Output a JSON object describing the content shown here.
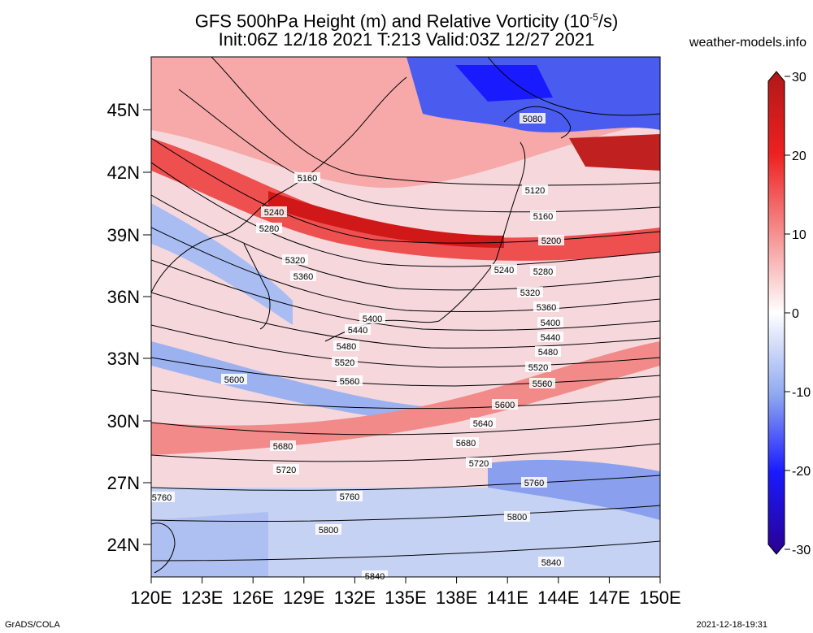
{
  "title": {
    "line1": "GFS 500hPa Height (m) and Relative Vorticity (10",
    "exp": "-5",
    "line1_tail": "/s)",
    "line2": "Init:06Z 12/18 2021 T:213 Valid:03Z 12/27 2021"
  },
  "site": "weather-models.info",
  "footer": {
    "left": "GrADS/COLA",
    "right": "2021-12-18-19:31"
  },
  "lat_labels": [
    "45N",
    "42N",
    "39N",
    "36N",
    "33N",
    "30N",
    "27N",
    "24N"
  ],
  "lon_labels": [
    "120E",
    "123E",
    "126E",
    "129E",
    "132E",
    "135E",
    "138E",
    "141E",
    "144E",
    "147E",
    "150E"
  ],
  "colorbar": {
    "ticks": [
      "30",
      "20",
      "10",
      "0",
      "-10",
      "-20",
      "-30"
    ],
    "colors": [
      "#2a0090",
      "#1a1aff",
      "#4a6af0",
      "#8fa8f0",
      "#c8d6f4",
      "#ffffff",
      "#f8cccc",
      "#f48c8c",
      "#ee3030",
      "#d01818",
      "#b01818"
    ]
  },
  "contour_labels": [
    "5080",
    "5120",
    "5160",
    "5160",
    "5200",
    "5240",
    "5240",
    "5280",
    "5280",
    "5320",
    "5320",
    "5360",
    "5360",
    "5400",
    "5400",
    "5440",
    "5440",
    "5480",
    "5480",
    "5520",
    "5520",
    "5560",
    "5560",
    "5600",
    "5600",
    "5640",
    "5680",
    "5680",
    "5720",
    "5720",
    "5760",
    "5760",
    "5760",
    "5800",
    "5800",
    "5840",
    "5840"
  ]
}
